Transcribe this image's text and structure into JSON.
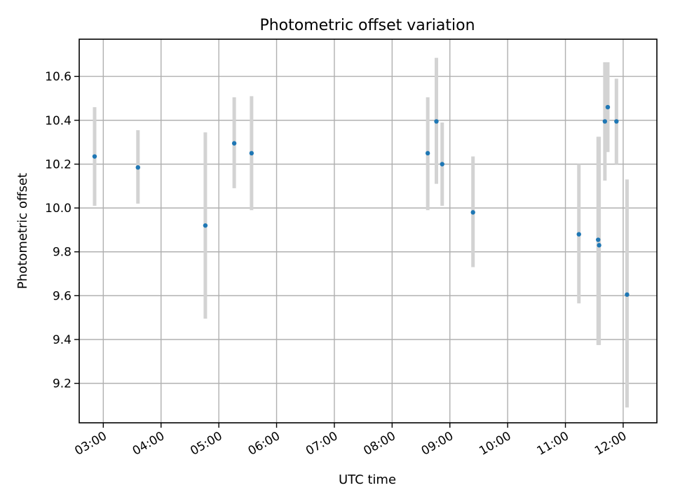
{
  "chart_data": {
    "type": "scatter",
    "title": "Photometric offset variation",
    "xlabel": "UTC time",
    "ylabel": "Photometric offset",
    "x_tick_labels": [
      "03:00",
      "04:00",
      "05:00",
      "06:00",
      "07:00",
      "08:00",
      "09:00",
      "10:00",
      "11:00",
      "12:00"
    ],
    "x_ticks_hours": [
      3,
      4,
      5,
      6,
      7,
      8,
      9,
      10,
      11,
      12
    ],
    "y_ticks": [
      9.2,
      9.4,
      9.6,
      9.8,
      10.0,
      10.2,
      10.4,
      10.6
    ],
    "y_tick_labels": [
      "9.2",
      "9.4",
      "9.6",
      "9.8",
      "10.0",
      "10.2",
      "10.4",
      "10.6"
    ],
    "xlim": [
      "02:35",
      "12:35"
    ],
    "ylim": [
      9.02,
      10.77
    ],
    "grid": true,
    "point_color": "#1f77b4",
    "errorbar_color": "#d3d3d3",
    "points": [
      {
        "time": "02:51",
        "y": 10.235,
        "low": 10.01,
        "high": 10.46
      },
      {
        "time": "03:36",
        "y": 10.185,
        "low": 10.02,
        "high": 10.355
      },
      {
        "time": "04:46",
        "y": 9.92,
        "low": 9.495,
        "high": 10.345
      },
      {
        "time": "05:16",
        "y": 10.295,
        "low": 10.09,
        "high": 10.505
      },
      {
        "time": "05:34",
        "y": 10.25,
        "low": 9.99,
        "high": 10.51
      },
      {
        "time": "08:37",
        "y": 10.25,
        "low": 9.99,
        "high": 10.505
      },
      {
        "time": "08:46",
        "y": 10.395,
        "low": 10.11,
        "high": 10.685
      },
      {
        "time": "08:52",
        "y": 10.2,
        "low": 10.01,
        "high": 10.39
      },
      {
        "time": "09:24",
        "y": 9.98,
        "low": 9.73,
        "high": 10.235
      },
      {
        "time": "11:14",
        "y": 9.88,
        "low": 9.565,
        "high": 10.2
      },
      {
        "time": "11:34",
        "y": 9.855,
        "low": 9.375,
        "high": 10.325
      },
      {
        "time": "11:35",
        "y": 9.83,
        "low": 9.375,
        "high": 10.325
      },
      {
        "time": "11:41",
        "y": 10.395,
        "low": 10.125,
        "high": 10.665
      },
      {
        "time": "11:44",
        "y": 10.46,
        "low": 10.255,
        "high": 10.665
      },
      {
        "time": "11:53",
        "y": 10.395,
        "low": 10.2,
        "high": 10.59
      },
      {
        "time": "12:04",
        "y": 9.605,
        "low": 9.09,
        "high": 10.13
      }
    ]
  }
}
